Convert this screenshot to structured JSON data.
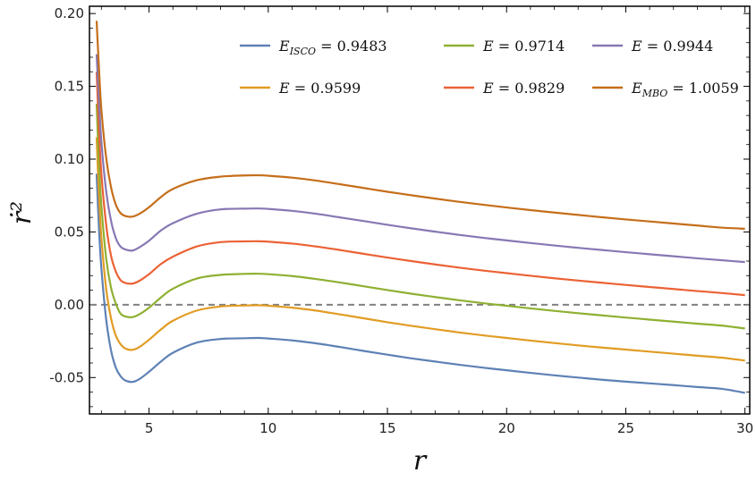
{
  "chart_data": {
    "type": "line",
    "xlabel": "r",
    "ylabel": "ṙ²",
    "xlim": [
      2.5,
      30.2
    ],
    "ylim": [
      -0.075,
      0.205
    ],
    "x_ticks": [
      5,
      10,
      15,
      20,
      25,
      30
    ],
    "x_tick_labels": [
      "5",
      "10",
      "15",
      "20",
      "25",
      "30"
    ],
    "y_ticks": [
      -0.05,
      0.0,
      0.05,
      0.1,
      0.15,
      0.2
    ],
    "y_tick_labels": [
      "-0.05",
      "0.00",
      "0.05",
      "0.10",
      "0.15",
      "0.20"
    ],
    "grid": false,
    "legend_position": "top-right",
    "reference_line": {
      "y": 0,
      "style": "dashed",
      "color": "#808080"
    },
    "x": [
      2.8,
      2.9,
      3.0,
      3.2,
      3.4,
      3.6,
      3.8,
      4.0,
      4.3,
      4.6,
      5.0,
      5.5,
      6.0,
      7.0,
      8.0,
      9.0,
      9.6,
      10.0,
      11.0,
      12.0,
      13.0,
      14.0,
      15.0,
      16.0,
      17.0,
      18.0,
      19.0,
      20.0,
      21.0,
      22.0,
      23.0,
      24.0,
      25.0,
      26.0,
      27.0,
      28.0,
      29.0,
      30.0
    ],
    "series": [
      {
        "name": "E_ISCO = 0.9483",
        "legend_var": "E",
        "legend_sub": "ISCO",
        "legend_value": "= 0.9483",
        "color": "#5e81b5",
        "y": [
          0.09,
          0.052,
          0.025,
          -0.01,
          -0.031,
          -0.043,
          -0.049,
          -0.052,
          -0.053,
          -0.051,
          -0.046,
          -0.039,
          -0.033,
          -0.026,
          -0.0235,
          -0.023,
          -0.0228,
          -0.0232,
          -0.0245,
          -0.0265,
          -0.029,
          -0.0317,
          -0.0343,
          -0.0368,
          -0.039,
          -0.0412,
          -0.0432,
          -0.045,
          -0.0468,
          -0.0485,
          -0.05,
          -0.0515,
          -0.0528,
          -0.054,
          -0.0552,
          -0.0565,
          -0.0577,
          -0.0605
        ]
      },
      {
        "name": "E = 0.9599",
        "legend_var": "E",
        "legend_sub": "",
        "legend_value": "= 0.9599",
        "color": "#e19c24",
        "y": [
          0.115,
          0.075,
          0.046,
          0.011,
          -0.009,
          -0.021,
          -0.027,
          -0.03,
          -0.031,
          -0.029,
          -0.024,
          -0.017,
          -0.011,
          -0.004,
          -0.0012,
          -0.0005,
          -0.0003,
          -0.0007,
          -0.002,
          -0.004,
          -0.0066,
          -0.0093,
          -0.012,
          -0.0145,
          -0.0168,
          -0.019,
          -0.021,
          -0.0228,
          -0.0246,
          -0.0263,
          -0.0279,
          -0.0294,
          -0.0308,
          -0.0322,
          -0.0336,
          -0.035,
          -0.0363,
          -0.0383
        ]
      },
      {
        "name": "E = 0.9714",
        "legend_var": "E",
        "legend_sub": "",
        "legend_value": "= 0.9714",
        "color": "#8fb032",
        "y": [
          0.138,
          0.097,
          0.068,
          0.032,
          0.012,
          0.001,
          -0.006,
          -0.008,
          -0.0085,
          -0.0065,
          -0.002,
          0.005,
          0.011,
          0.018,
          0.0205,
          0.0212,
          0.0213,
          0.021,
          0.0197,
          0.0177,
          0.0153,
          0.0127,
          0.0101,
          0.0076,
          0.0053,
          0.0031,
          0.0011,
          -0.0007,
          -0.0025,
          -0.0042,
          -0.0058,
          -0.0073,
          -0.0088,
          -0.0102,
          -0.0116,
          -0.013,
          -0.0143,
          -0.0163
        ]
      },
      {
        "name": "E = 0.9829",
        "legend_var": "E",
        "legend_sub": "",
        "legend_value": "= 0.9829",
        "color": "#eb6235",
        "y": [
          0.16,
          0.12,
          0.09,
          0.055,
          0.034,
          0.023,
          0.017,
          0.015,
          0.0145,
          0.0165,
          0.021,
          0.028,
          0.033,
          0.04,
          0.043,
          0.0435,
          0.0436,
          0.0433,
          0.042,
          0.04,
          0.0376,
          0.035,
          0.0324,
          0.03,
          0.0277,
          0.0255,
          0.0235,
          0.0217,
          0.0199,
          0.0182,
          0.0166,
          0.0151,
          0.0136,
          0.0122,
          0.0108,
          0.0094,
          0.0081,
          0.0066
        ]
      },
      {
        "name": "E = 0.9944",
        "legend_var": "E",
        "legend_sub": "",
        "legend_value": "= 0.9944",
        "color": "#8778b3",
        "y": [
          0.172,
          0.14,
          0.112,
          0.078,
          0.058,
          0.046,
          0.04,
          0.038,
          0.0372,
          0.0395,
          0.044,
          0.051,
          0.056,
          0.0625,
          0.0655,
          0.066,
          0.0661,
          0.0658,
          0.0645,
          0.0625,
          0.06,
          0.0575,
          0.0549,
          0.0525,
          0.0502,
          0.048,
          0.046,
          0.0442,
          0.0424,
          0.0407,
          0.0391,
          0.0376,
          0.0361,
          0.0347,
          0.0333,
          0.0319,
          0.0306,
          0.0293
        ]
      },
      {
        "name": "E_MBO = 1.0059",
        "legend_var": "E",
        "legend_sub": "MBO",
        "legend_value": "= 1.0059",
        "color": "#c56e1a",
        "y": [
          0.195,
          0.162,
          0.134,
          0.101,
          0.081,
          0.069,
          0.063,
          0.061,
          0.0605,
          0.0625,
          0.067,
          0.074,
          0.0795,
          0.0855,
          0.088,
          0.0888,
          0.0889,
          0.0886,
          0.0873,
          0.0853,
          0.0828,
          0.0802,
          0.0776,
          0.0752,
          0.0729,
          0.0707,
          0.0687,
          0.0668,
          0.065,
          0.0633,
          0.0617,
          0.0601,
          0.0586,
          0.0572,
          0.0558,
          0.0544,
          0.053,
          0.0522
        ]
      }
    ]
  }
}
